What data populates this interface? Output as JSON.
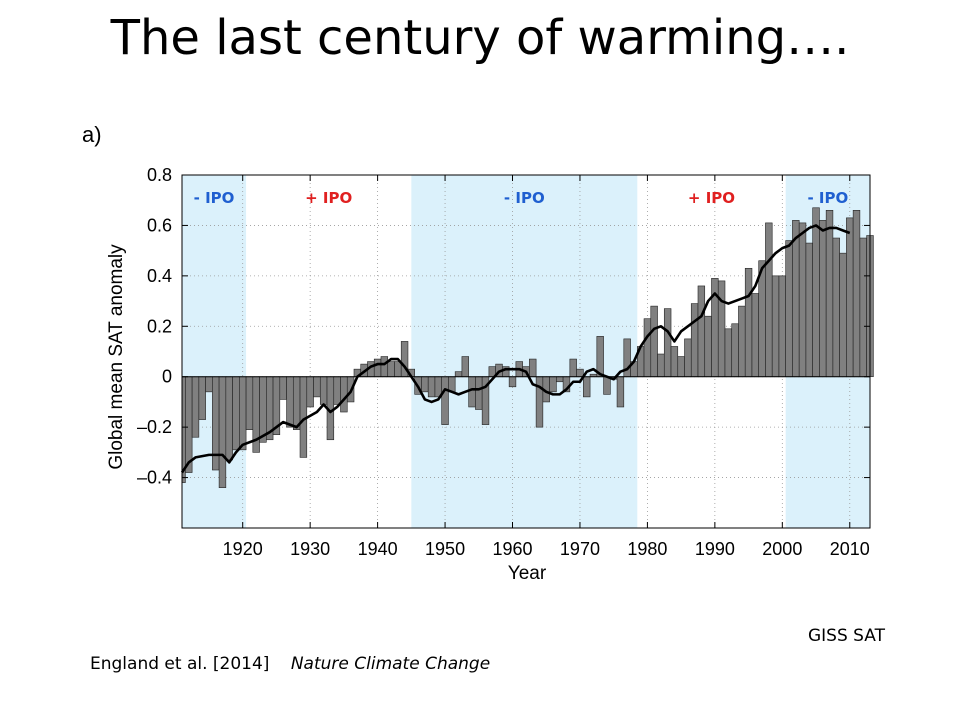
{
  "slide": {
    "title": "The last century of warming….",
    "panel_label": "a)",
    "source_label": "GISS SAT",
    "citation_authors": "England et al. [2014]",
    "citation_journal": "Nature Climate Change"
  },
  "chart_data": {
    "type": "bar",
    "xlabel": "Year",
    "ylabel": "Global mean SAT anomaly",
    "xlim": [
      1911,
      2013
    ],
    "ylim": [
      -0.6,
      0.8
    ],
    "x_ticks": [
      1920,
      1930,
      1940,
      1950,
      1960,
      1970,
      1980,
      1990,
      2000,
      2010
    ],
    "y_ticks": [
      {
        "value": 0.8,
        "label": "0.8"
      },
      {
        "value": 0.6,
        "label": "0.6"
      },
      {
        "value": 0.4,
        "label": "0.4"
      },
      {
        "value": 0.2,
        "label": "0.2"
      },
      {
        "value": 0,
        "label": "0"
      },
      {
        "value": -0.2,
        "label": "–0.2"
      },
      {
        "value": -0.4,
        "label": "–0.4"
      }
    ],
    "grid": true,
    "colors": {
      "bar": "#808080",
      "negative_ipo_shade": "#dbf1fb",
      "negative_ipo_text": "#1f5fd0",
      "positive_ipo_text": "#e02020",
      "smoothed_line": "#000000"
    },
    "ipo_phases": [
      {
        "label": "- IPO",
        "sign": "negative",
        "start": 1911,
        "end": 1920.5
      },
      {
        "label": "+ IPO",
        "sign": "positive",
        "start": 1920.5,
        "end": 1945
      },
      {
        "label": "- IPO",
        "sign": "negative",
        "start": 1945,
        "end": 1978.5
      },
      {
        "label": "+ IPO",
        "sign": "positive",
        "start": 1978.5,
        "end": 2000.5
      },
      {
        "label": "- IPO",
        "sign": "negative",
        "start": 2000.5,
        "end": 2013
      }
    ],
    "series": [
      {
        "years_start": 1911,
        "values": [
          -0.42,
          -0.38,
          -0.24,
          -0.17,
          -0.06,
          -0.37,
          -0.44,
          -0.33,
          -0.29,
          -0.29,
          -0.21,
          -0.3,
          -0.26,
          -0.25,
          -0.23,
          -0.09,
          -0.2,
          -0.21,
          -0.32,
          -0.12,
          -0.08,
          -0.11,
          -0.25,
          -0.11,
          -0.14,
          -0.1,
          0.03,
          0.05,
          0.06,
          0.07,
          0.08,
          0.06,
          0.06,
          0.14,
          0.03,
          -0.07,
          -0.06,
          -0.08,
          -0.08,
          -0.19,
          -0.06,
          0.02,
          0.08,
          -0.12,
          -0.13,
          -0.19,
          0.04,
          0.05,
          0.04,
          -0.04,
          0.06,
          0.04,
          0.07,
          -0.2,
          -0.1,
          -0.06,
          -0.02,
          -0.06,
          0.07,
          0.03,
          -0.08,
          0.01,
          0.16,
          -0.07,
          -0.01,
          -0.12,
          0.15,
          0.06,
          0.12,
          0.23,
          0.28,
          0.09,
          0.27,
          0.12,
          0.08,
          0.15,
          0.29,
          0.36,
          0.24,
          0.39,
          0.38,
          0.19,
          0.21,
          0.28,
          0.43,
          0.33,
          0.46,
          0.61,
          0.4,
          0.4,
          0.54,
          0.62,
          0.61,
          0.53,
          0.67,
          0.62,
          0.66,
          0.55,
          0.49,
          0.63,
          0.66,
          0.55,
          0.56
        ]
      },
      {
        "name": "smoothed",
        "x": [
          1911,
          1912,
          1913,
          1915,
          1917,
          1918,
          1919,
          1920,
          1922,
          1924,
          1926,
          1928,
          1929,
          1931,
          1932,
          1933,
          1934,
          1936,
          1937,
          1938,
          1939,
          1940,
          1941,
          1942,
          1943,
          1944,
          1945,
          1946,
          1947,
          1948,
          1949,
          1950,
          1951,
          1952,
          1953,
          1954,
          1955,
          1956,
          1957,
          1958,
          1959,
          1960,
          1961,
          1962,
          1963,
          1964,
          1965,
          1966,
          1967,
          1968,
          1969,
          1970,
          1971,
          1972,
          1973,
          1974,
          1975,
          1976,
          1977,
          1978,
          1979,
          1980,
          1981,
          1982,
          1983,
          1984,
          1985,
          1986,
          1987,
          1988,
          1989,
          1990,
          1991,
          1992,
          1993,
          1994,
          1995,
          1996,
          1997,
          1998,
          1999,
          2000,
          2001,
          2002,
          2003,
          2004,
          2005,
          2006,
          2007,
          2008,
          2009,
          2010
        ],
        "y": [
          -0.38,
          -0.34,
          -0.32,
          -0.31,
          -0.31,
          -0.34,
          -0.3,
          -0.27,
          -0.25,
          -0.22,
          -0.18,
          -0.2,
          -0.17,
          -0.14,
          -0.11,
          -0.14,
          -0.12,
          -0.06,
          0.0,
          0.02,
          0.04,
          0.05,
          0.05,
          0.07,
          0.07,
          0.04,
          0.0,
          -0.04,
          -0.09,
          -0.1,
          -0.09,
          -0.05,
          -0.06,
          -0.07,
          -0.06,
          -0.05,
          -0.05,
          -0.04,
          -0.01,
          0.02,
          0.03,
          0.03,
          0.03,
          0.02,
          -0.03,
          -0.04,
          -0.06,
          -0.07,
          -0.07,
          -0.05,
          -0.02,
          -0.02,
          0.02,
          0.03,
          0.01,
          0.0,
          -0.01,
          0.02,
          0.03,
          0.06,
          0.12,
          0.16,
          0.19,
          0.2,
          0.18,
          0.14,
          0.18,
          0.2,
          0.22,
          0.24,
          0.3,
          0.33,
          0.3,
          0.29,
          0.3,
          0.31,
          0.32,
          0.36,
          0.43,
          0.46,
          0.49,
          0.51,
          0.52,
          0.55,
          0.57,
          0.59,
          0.6,
          0.58,
          0.59,
          0.59,
          0.58,
          0.57
        ]
      }
    ]
  }
}
